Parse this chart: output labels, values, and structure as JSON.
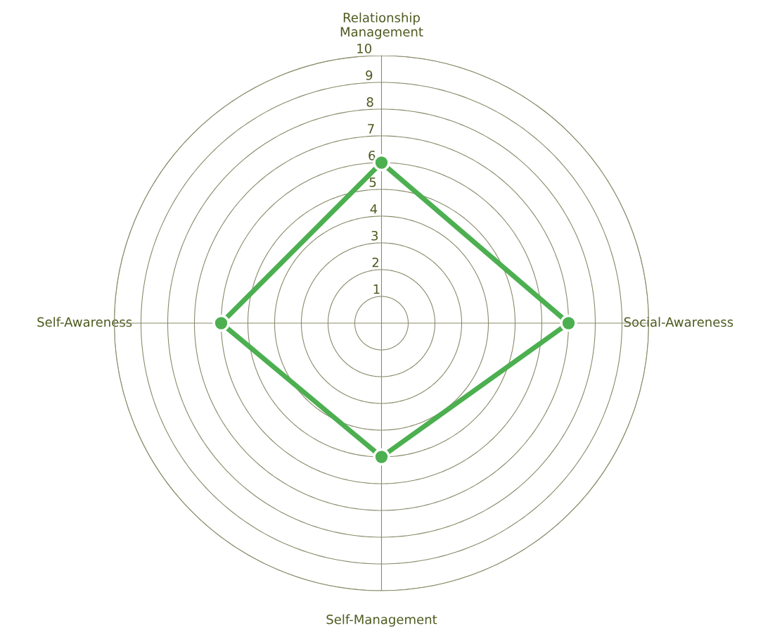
{
  "chart_data": {
    "type": "radar",
    "categories": [
      "Relationship Management",
      "Social-Awareness",
      "Self-Management",
      "Self-Awareness"
    ],
    "series": [
      {
        "color": "#4caf50",
        "values": [
          6,
          7,
          5,
          6
        ]
      }
    ],
    "ylim": [
      0,
      10
    ],
    "yticks": [
      1,
      2,
      3,
      4,
      5,
      6,
      7,
      8,
      9,
      10
    ],
    "grid": true,
    "marker": "circle",
    "line_style": "solid",
    "legend": false
  }
}
